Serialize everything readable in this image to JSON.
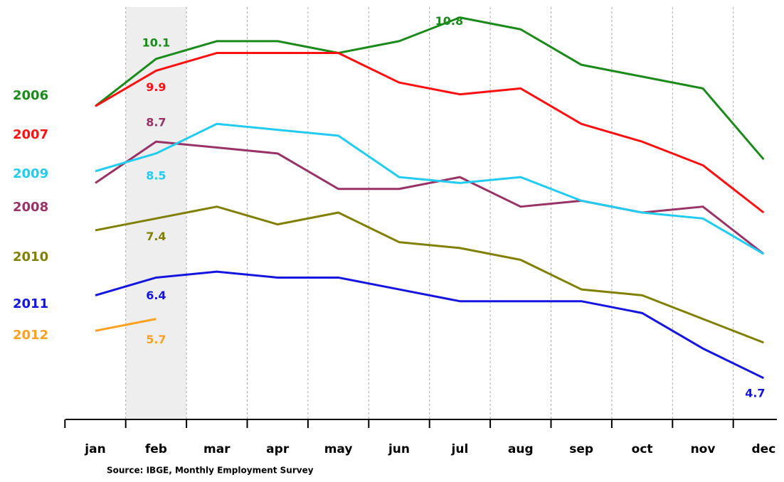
{
  "chart_data": {
    "type": "line",
    "categories": [
      "jan",
      "feb",
      "mar",
      "apr",
      "may",
      "jun",
      "jul",
      "aug",
      "sep",
      "oct",
      "nov",
      "dec"
    ],
    "ylim": [
      4,
      11
    ],
    "series": [
      {
        "name": "2006",
        "color": "#1a8a1a",
        "values": [
          9.3,
          10.1,
          10.4,
          10.4,
          10.2,
          10.4,
          10.8,
          10.6,
          10.0,
          9.8,
          9.6,
          8.4
        ]
      },
      {
        "name": "2007",
        "color": "#ff1010",
        "values": [
          9.3,
          9.9,
          10.2,
          10.2,
          10.2,
          9.7,
          9.5,
          9.6,
          9.0,
          8.7,
          8.3,
          7.5
        ]
      },
      {
        "name": "2008",
        "color": "#993366",
        "values": [
          8.0,
          8.7,
          8.6,
          8.5,
          7.9,
          7.9,
          8.1,
          7.6,
          7.7,
          7.5,
          7.6,
          6.8
        ]
      },
      {
        "name": "2009",
        "color": "#22ccf0",
        "values": [
          8.2,
          8.5,
          9.0,
          8.9,
          8.8,
          8.1,
          8.0,
          8.1,
          7.7,
          7.5,
          7.4,
          6.8
        ]
      },
      {
        "name": "2010",
        "color": "#808000",
        "values": [
          7.2,
          7.4,
          7.6,
          7.3,
          7.5,
          7.0,
          6.9,
          6.7,
          6.2,
          6.1,
          5.7,
          5.3
        ]
      },
      {
        "name": "2011",
        "color": "#1515e0",
        "values": [
          6.1,
          6.4,
          6.5,
          6.4,
          6.4,
          6.2,
          6.0,
          6.0,
          6.0,
          5.8,
          5.2,
          4.7
        ]
      },
      {
        "name": "2012",
        "color": "#ffa020",
        "values": [
          5.5,
          5.7,
          null,
          null,
          null,
          null,
          null,
          null,
          null,
          null,
          null,
          null
        ]
      }
    ],
    "source": "Source: IBGE, Monthly Employment Survey"
  }
}
